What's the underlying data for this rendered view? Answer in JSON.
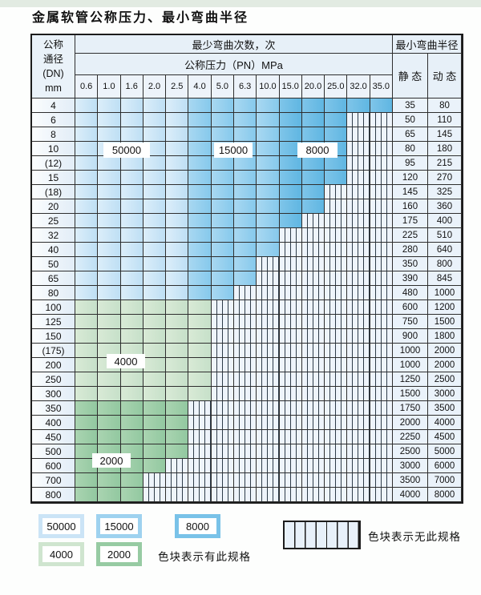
{
  "title": "金属软管公称压力、最小弯曲半径",
  "table": {
    "header": {
      "dn_lines": [
        "公称",
        "通径",
        "(DN)",
        "mm"
      ],
      "bend_cycles": "最少弯曲次数，次",
      "pressure": "公称压力（PN）MPa",
      "radius": "最小弯曲半径",
      "static": "静 态",
      "dynamic": "动 态",
      "pressures": [
        "0.6",
        "1.0",
        "1.6",
        "2.0",
        "2.5",
        "4.0",
        "5.0",
        "6.3",
        "10.0",
        "15.0",
        "20.0",
        "25.0",
        "32.0",
        "35.0"
      ]
    },
    "cell_legend_codes": {
      "b1": "50000次区",
      "b2": "15000次区",
      "b3": "8000次区",
      "g1": "4000次区",
      "g2": "2000次区",
      "h": "无此规格"
    },
    "rows": [
      {
        "dn": "4",
        "static": "35",
        "dynamic": "80",
        "cells": "b1*5 b2*4 b3*5"
      },
      {
        "dn": "6",
        "static": "50",
        "dynamic": "110",
        "cells": "b1*5 b2*4 b3*3 h*2"
      },
      {
        "dn": "8",
        "static": "65",
        "dynamic": "145",
        "cells": "b1*5 b2*4 b3*3 h*2"
      },
      {
        "dn": "10",
        "static": "80",
        "dynamic": "180",
        "cells": "b1*5 b2*4 b3*3 h*2"
      },
      {
        "dn": "(12)",
        "static": "95",
        "dynamic": "215",
        "cells": "b1*5 b2*4 b3*3 h*2"
      },
      {
        "dn": "15",
        "static": "120",
        "dynamic": "270",
        "cells": "b1*5 b2*4 b3*3 h*2"
      },
      {
        "dn": "(18)",
        "static": "145",
        "dynamic": "325",
        "cells": "b1*5 b2*4 b3*2 h*3"
      },
      {
        "dn": "20",
        "static": "160",
        "dynamic": "360",
        "cells": "b1*5 b2*4 b3*2 h*3"
      },
      {
        "dn": "25",
        "static": "175",
        "dynamic": "400",
        "cells": "b1*5 b2*4 b3*1 h*4"
      },
      {
        "dn": "32",
        "static": "225",
        "dynamic": "510",
        "cells": "b1*5 b2*4 h*5"
      },
      {
        "dn": "40",
        "static": "280",
        "dynamic": "640",
        "cells": "b1*5 b2*4 h*5"
      },
      {
        "dn": "50",
        "static": "350",
        "dynamic": "800",
        "cells": "b1*5 b2*3 h*6"
      },
      {
        "dn": "65",
        "static": "390",
        "dynamic": "845",
        "cells": "b1*5 b2*3 h*6"
      },
      {
        "dn": "80",
        "static": "480",
        "dynamic": "1000",
        "cells": "b1*5 b2*2 h*7"
      },
      {
        "dn": "100",
        "static": "600",
        "dynamic": "1200",
        "cells": "g1*6 h*8"
      },
      {
        "dn": "125",
        "static": "750",
        "dynamic": "1500",
        "cells": "g1*6 h*8"
      },
      {
        "dn": "150",
        "static": "900",
        "dynamic": "1800",
        "cells": "g1*6 h*8"
      },
      {
        "dn": "(175)",
        "static": "1000",
        "dynamic": "2000",
        "cells": "g1*6 h*8"
      },
      {
        "dn": "200",
        "static": "1000",
        "dynamic": "2000",
        "cells": "g1*6 h*8"
      },
      {
        "dn": "250",
        "static": "1250",
        "dynamic": "2500",
        "cells": "g1*6 h*8"
      },
      {
        "dn": "300",
        "static": "1500",
        "dynamic": "3000",
        "cells": "g1*6 h*8"
      },
      {
        "dn": "350",
        "static": "1750",
        "dynamic": "3500",
        "cells": "g2*5 h*9"
      },
      {
        "dn": "400",
        "static": "2000",
        "dynamic": "4000",
        "cells": "g2*5 h*9"
      },
      {
        "dn": "450",
        "static": "2250",
        "dynamic": "4500",
        "cells": "g2*5 h*9"
      },
      {
        "dn": "500",
        "static": "2500",
        "dynamic": "5000",
        "cells": "g2*5 h*9"
      },
      {
        "dn": "600",
        "static": "3000",
        "dynamic": "6000",
        "cells": "g2*4 h*10"
      },
      {
        "dn": "700",
        "static": "3500",
        "dynamic": "7000",
        "cells": "g2*3 h*11"
      },
      {
        "dn": "800",
        "static": "4000",
        "dynamic": "8000",
        "cells": "g2*3 h*11"
      }
    ]
  },
  "region_labels": {
    "r50000": "50000",
    "r15000": "15000",
    "r8000": "8000",
    "r4000": "4000",
    "r2000": "2000"
  },
  "legend": {
    "values": [
      "50000",
      "15000",
      "8000",
      "4000",
      "2000"
    ],
    "available_label": "色块表示有此规格",
    "unavailable_label": "色块表示无此规格"
  },
  "colors": {
    "blue_50000": "#cbe4f6",
    "blue_15000": "#9ed2ef",
    "blue_8000": "#79c2e8",
    "green_4000": "#cfe5cf",
    "green_2000": "#97cba3",
    "hatch_bg": "#eef4fb",
    "grid_line": "#2e2e2e"
  }
}
